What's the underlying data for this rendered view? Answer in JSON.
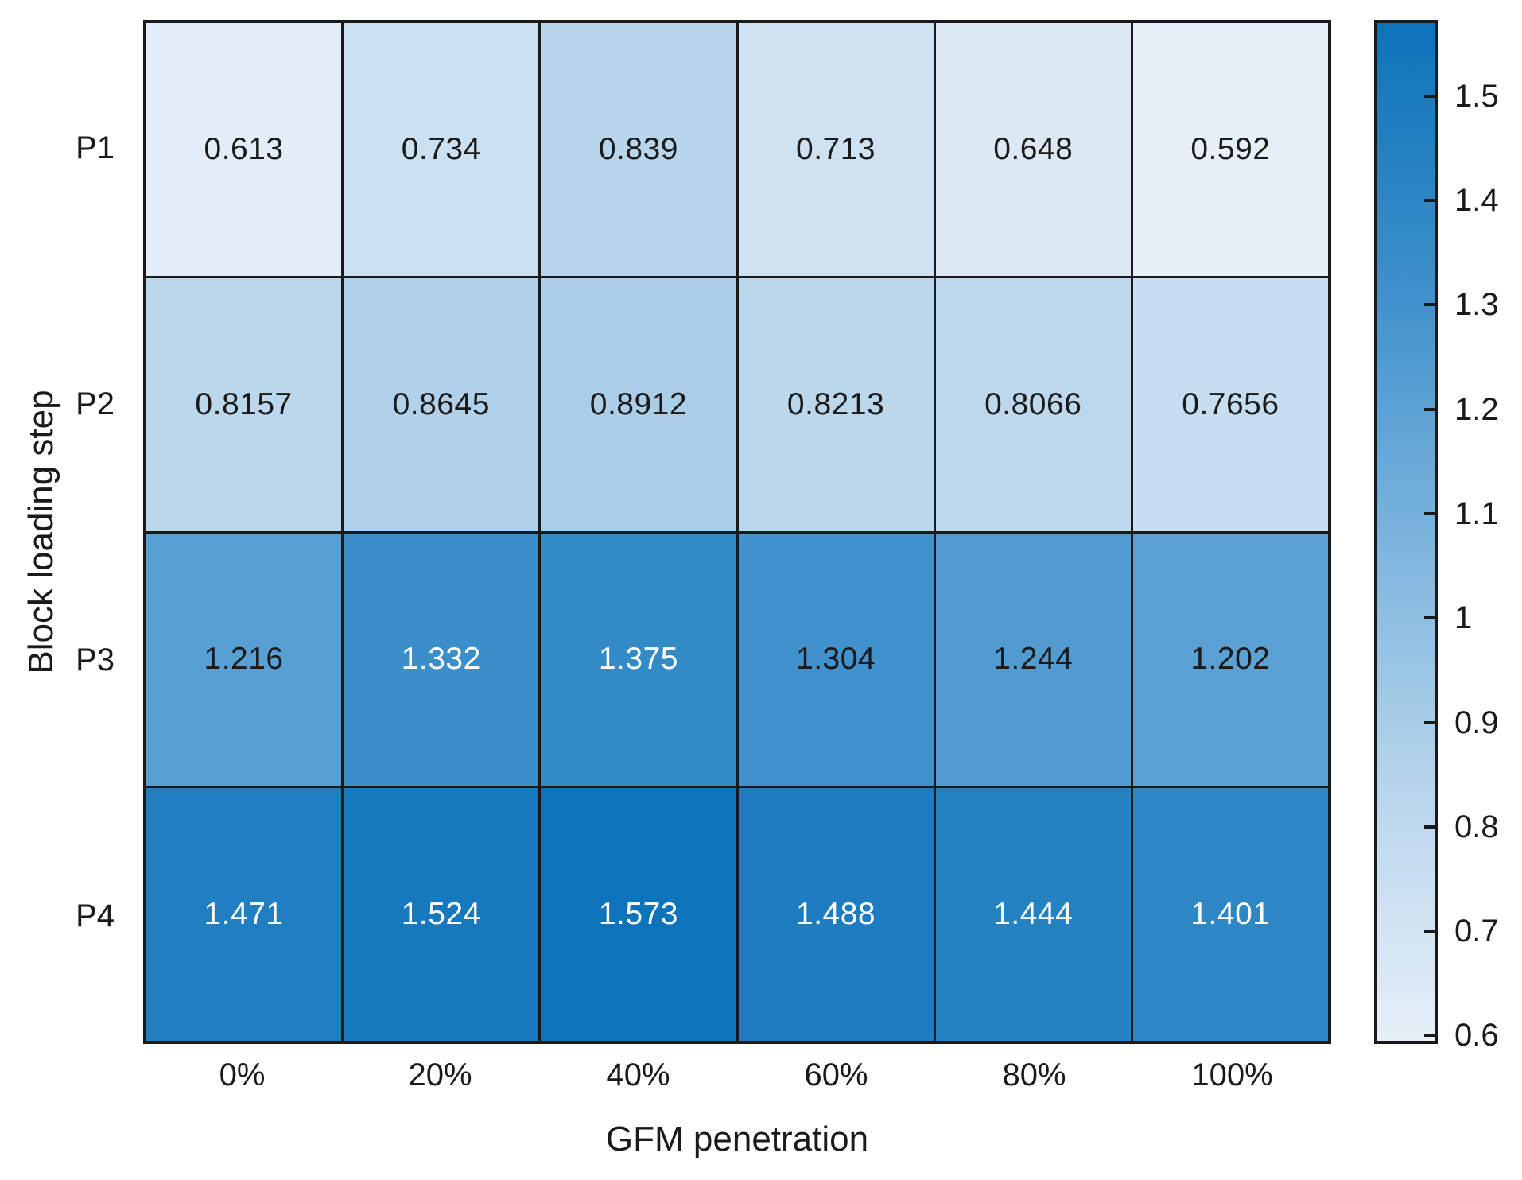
{
  "chart_data": {
    "type": "heatmap",
    "rows": [
      "P1",
      "P2",
      "P3",
      "P4"
    ],
    "columns": [
      "0%",
      "20%",
      "40%",
      "60%",
      "80%",
      "100%"
    ],
    "values": [
      [
        0.613,
        0.734,
        0.839,
        0.713,
        0.648,
        0.592
      ],
      [
        0.8157,
        0.8645,
        0.8912,
        0.8213,
        0.8066,
        0.7656
      ],
      [
        1.216,
        1.332,
        1.375,
        1.304,
        1.244,
        1.202
      ],
      [
        1.471,
        1.524,
        1.573,
        1.488,
        1.444,
        1.401
      ]
    ],
    "xlabel": "GFM penetration",
    "ylabel": "Block loading step",
    "color_domain": [
      0.592,
      1.573
    ],
    "white_text_min_value": 1.33,
    "grid_on": true,
    "colormap_stops": [
      {
        "t": 0.0,
        "color": "#e7eff8"
      },
      {
        "t": 0.25,
        "color": "#b7d5eb"
      },
      {
        "t": 0.5,
        "color": "#7ab3dd"
      },
      {
        "t": 0.75,
        "color": "#3b8fca"
      },
      {
        "t": 1.0,
        "color": "#0d73ba"
      }
    ],
    "colorbar": {
      "position": "right",
      "tick_labels": [
        "1.5",
        "1.4",
        "1.3",
        "1.2",
        "1.1",
        "1",
        "0.9",
        "0.8",
        "0.7",
        "0.6"
      ],
      "tick_values": [
        1.5,
        1.4,
        1.3,
        1.2,
        1.1,
        1.0,
        0.9,
        0.8,
        0.7,
        0.6
      ]
    },
    "colors": {
      "axis_text": "#1a1a1a",
      "grid_line": "#1a1a1a",
      "cell_text_dark": "#1a1a1a",
      "cell_text_light": "#ffffff",
      "background": "#ffffff"
    }
  }
}
